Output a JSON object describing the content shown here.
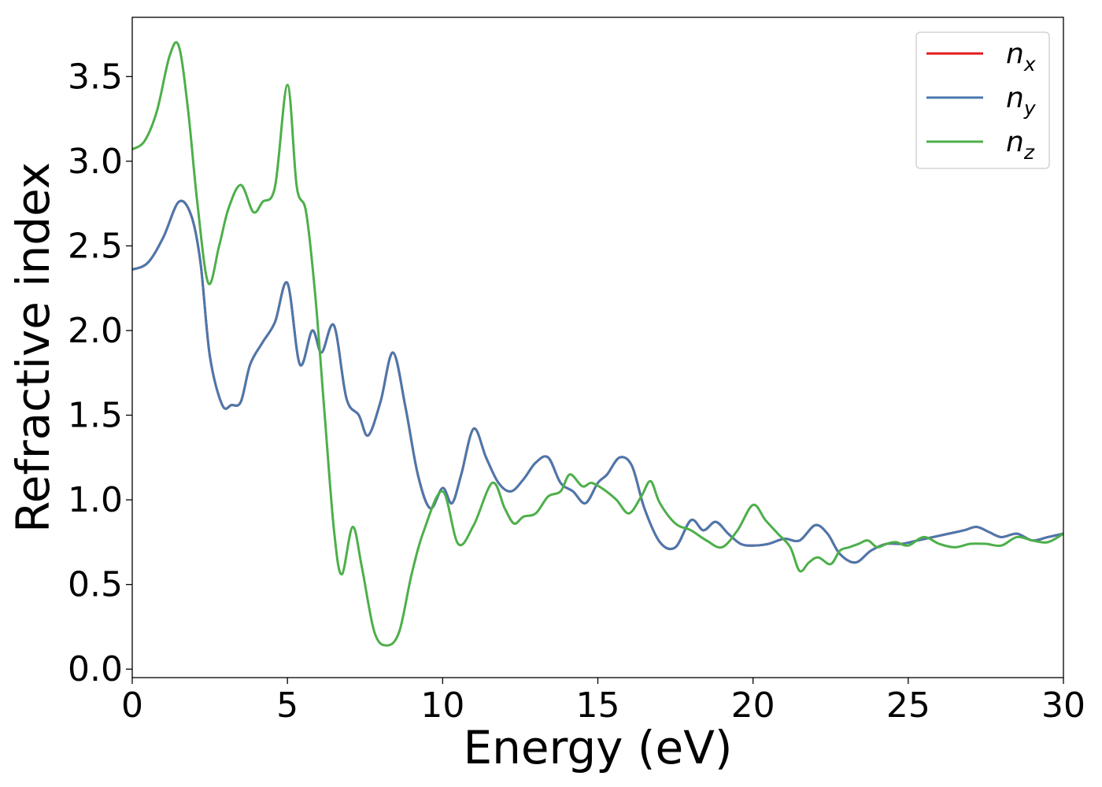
{
  "chart_data": {
    "type": "line",
    "title": "",
    "xlabel": "Energy (eV)",
    "ylabel": "Refractive index",
    "xlim": [
      0,
      30
    ],
    "ylim": [
      -0.05,
      3.85
    ],
    "xticks": [
      0,
      5,
      10,
      15,
      20,
      25,
      30
    ],
    "xtick_labels": [
      "0",
      "5",
      "10",
      "15",
      "20",
      "25",
      "30"
    ],
    "yticks": [
      0.0,
      0.5,
      1.0,
      1.5,
      2.0,
      2.5,
      3.0,
      3.5
    ],
    "ytick_labels": [
      "0.0",
      "0.5",
      "1.0",
      "1.5",
      "2.0",
      "2.5",
      "3.0",
      "3.5"
    ],
    "grid": false,
    "legend_position": "top-right",
    "series": [
      {
        "name": "n_x",
        "label_main": "n",
        "label_sub": "x",
        "color": "#e41a1c",
        "x": [
          0,
          0.5,
          1.0,
          1.5,
          1.9,
          2.2,
          2.5,
          2.9,
          3.2,
          3.5,
          3.8,
          4.2,
          4.6,
          5.0,
          5.4,
          5.8,
          6.1,
          6.5,
          6.9,
          7.3,
          7.6,
          8.0,
          8.4,
          8.8,
          9.2,
          9.6,
          10.0,
          10.3,
          10.6,
          11.0,
          11.4,
          11.8,
          12.2,
          12.6,
          13.0,
          13.4,
          13.8,
          14.2,
          14.6,
          15.0,
          15.3,
          15.7,
          16.1,
          16.5,
          17.0,
          17.5,
          18.0,
          18.4,
          18.8,
          19.2,
          19.6,
          20.0,
          20.5,
          21.0,
          21.5,
          22.0,
          22.4,
          22.8,
          23.3,
          23.8,
          24.3,
          24.8,
          25.3,
          25.8,
          26.3,
          26.8,
          27.2,
          27.6,
          28.0,
          28.5,
          29.0,
          29.5,
          30.0
        ],
        "y": [
          2.36,
          2.4,
          2.55,
          2.76,
          2.68,
          2.4,
          1.85,
          1.56,
          1.56,
          1.58,
          1.8,
          1.93,
          2.05,
          2.28,
          1.8,
          2.0,
          1.87,
          2.03,
          1.6,
          1.5,
          1.38,
          1.58,
          1.87,
          1.55,
          1.15,
          0.95,
          1.07,
          0.98,
          1.15,
          1.42,
          1.25,
          1.1,
          1.05,
          1.12,
          1.22,
          1.25,
          1.1,
          1.05,
          0.98,
          1.1,
          1.15,
          1.25,
          1.2,
          0.95,
          0.75,
          0.72,
          0.88,
          0.82,
          0.87,
          0.8,
          0.74,
          0.73,
          0.74,
          0.77,
          0.76,
          0.85,
          0.8,
          0.68,
          0.63,
          0.7,
          0.74,
          0.74,
          0.76,
          0.78,
          0.8,
          0.82,
          0.84,
          0.81,
          0.78,
          0.8,
          0.76,
          0.78,
          0.8
        ]
      },
      {
        "name": "n_y",
        "label_main": "n",
        "label_sub": "y",
        "color": "#4a78ad",
        "x": [
          0,
          0.5,
          1.0,
          1.5,
          1.9,
          2.2,
          2.5,
          2.9,
          3.2,
          3.5,
          3.8,
          4.2,
          4.6,
          5.0,
          5.4,
          5.8,
          6.1,
          6.5,
          6.9,
          7.3,
          7.6,
          8.0,
          8.4,
          8.8,
          9.2,
          9.6,
          10.0,
          10.3,
          10.6,
          11.0,
          11.4,
          11.8,
          12.2,
          12.6,
          13.0,
          13.4,
          13.8,
          14.2,
          14.6,
          15.0,
          15.3,
          15.7,
          16.1,
          16.5,
          17.0,
          17.5,
          18.0,
          18.4,
          18.8,
          19.2,
          19.6,
          20.0,
          20.5,
          21.0,
          21.5,
          22.0,
          22.4,
          22.8,
          23.3,
          23.8,
          24.3,
          24.8,
          25.3,
          25.8,
          26.3,
          26.8,
          27.2,
          27.6,
          28.0,
          28.5,
          29.0,
          29.5,
          30.0
        ],
        "y": [
          2.36,
          2.4,
          2.55,
          2.76,
          2.68,
          2.4,
          1.85,
          1.56,
          1.56,
          1.58,
          1.8,
          1.93,
          2.05,
          2.28,
          1.8,
          2.0,
          1.87,
          2.03,
          1.6,
          1.5,
          1.38,
          1.58,
          1.87,
          1.55,
          1.15,
          0.95,
          1.07,
          0.98,
          1.15,
          1.42,
          1.25,
          1.1,
          1.05,
          1.12,
          1.22,
          1.25,
          1.1,
          1.05,
          0.98,
          1.1,
          1.15,
          1.25,
          1.2,
          0.95,
          0.75,
          0.72,
          0.88,
          0.82,
          0.87,
          0.8,
          0.74,
          0.73,
          0.74,
          0.77,
          0.76,
          0.85,
          0.8,
          0.68,
          0.63,
          0.7,
          0.74,
          0.74,
          0.76,
          0.78,
          0.8,
          0.82,
          0.84,
          0.81,
          0.78,
          0.8,
          0.76,
          0.78,
          0.8
        ]
      },
      {
        "name": "n_z",
        "label_main": "n",
        "label_sub": "z",
        "color": "#4daf4a",
        "x": [
          0,
          0.4,
          0.8,
          1.2,
          1.5,
          1.8,
          2.1,
          2.45,
          2.8,
          3.1,
          3.5,
          3.9,
          4.2,
          4.6,
          5.0,
          5.3,
          5.6,
          5.9,
          6.2,
          6.5,
          6.75,
          7.1,
          7.4,
          7.8,
          8.2,
          8.6,
          9.0,
          9.4,
          10.0,
          10.5,
          11.0,
          11.6,
          12.0,
          12.3,
          12.6,
          13.0,
          13.4,
          13.8,
          14.1,
          14.5,
          14.8,
          15.2,
          15.6,
          16.0,
          16.4,
          16.7,
          17.0,
          17.5,
          18.0,
          18.5,
          19.0,
          19.5,
          20.0,
          20.4,
          20.8,
          21.2,
          21.5,
          21.8,
          22.1,
          22.5,
          22.8,
          23.1,
          23.4,
          23.7,
          24.0,
          24.3,
          24.6,
          25.0,
          25.5,
          26.0,
          26.5,
          27.0,
          27.5,
          28.0,
          28.5,
          29.0,
          29.5,
          30.0
        ],
        "y": [
          3.07,
          3.12,
          3.3,
          3.62,
          3.68,
          3.3,
          2.75,
          2.28,
          2.5,
          2.72,
          2.86,
          2.7,
          2.76,
          2.85,
          3.45,
          2.85,
          2.7,
          2.2,
          1.5,
          0.82,
          0.56,
          0.84,
          0.6,
          0.22,
          0.14,
          0.22,
          0.56,
          0.82,
          1.05,
          0.74,
          0.85,
          1.1,
          0.95,
          0.86,
          0.9,
          0.92,
          1.02,
          1.05,
          1.15,
          1.08,
          1.1,
          1.06,
          1.0,
          0.92,
          1.02,
          1.11,
          0.98,
          0.86,
          0.82,
          0.76,
          0.72,
          0.82,
          0.97,
          0.88,
          0.8,
          0.72,
          0.58,
          0.63,
          0.66,
          0.62,
          0.7,
          0.72,
          0.74,
          0.76,
          0.72,
          0.74,
          0.75,
          0.73,
          0.78,
          0.74,
          0.72,
          0.74,
          0.74,
          0.73,
          0.78,
          0.76,
          0.75,
          0.8
        ]
      }
    ]
  }
}
